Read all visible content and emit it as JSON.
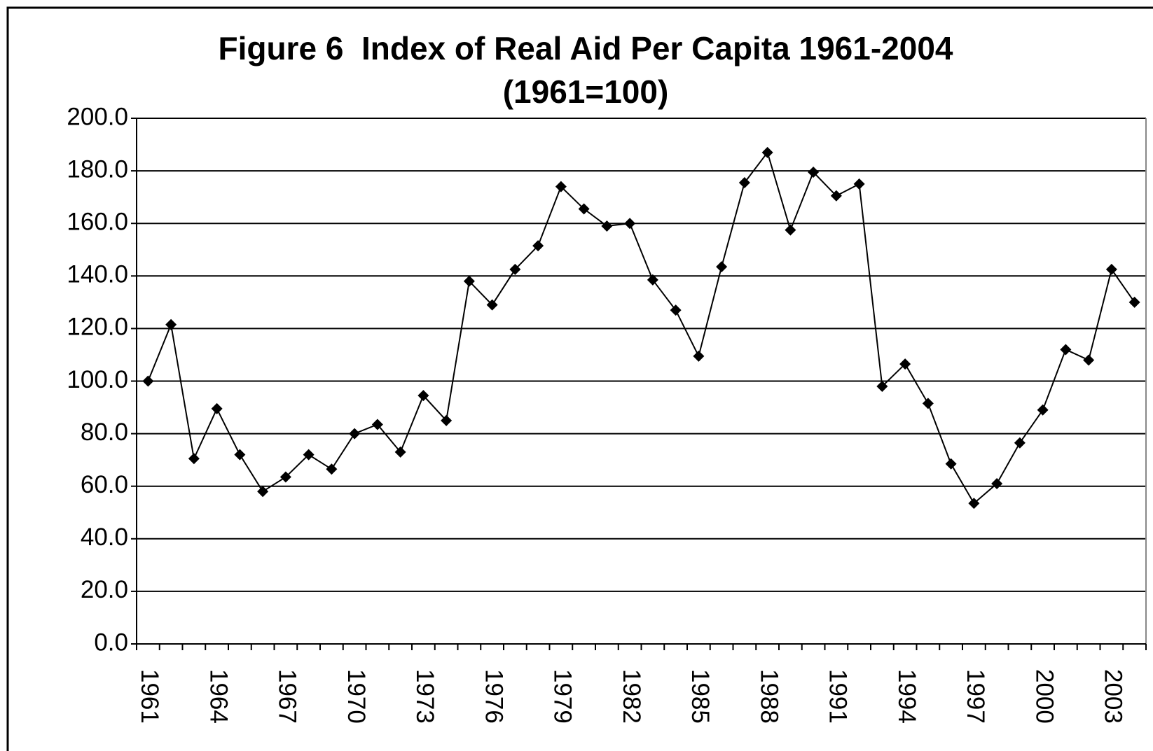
{
  "chart_data": {
    "type": "line",
    "title": "Figure 6  Index of Real Aid Per Capita 1961-2004",
    "subtitle": "(1961=100)",
    "categories": [
      "1961",
      null,
      null,
      "1964",
      null,
      null,
      "1967",
      null,
      null,
      "1970",
      null,
      null,
      "1973",
      null,
      null,
      "1976",
      null,
      null,
      "1979",
      null,
      null,
      "1982",
      null,
      null,
      "1985",
      null,
      null,
      "1988",
      null,
      null,
      "1991",
      null,
      null,
      "1994",
      null,
      null,
      "1997",
      null,
      null,
      "2000",
      null,
      null,
      "2003",
      null
    ],
    "values": [
      100,
      121.5,
      70.5,
      89.5,
      72,
      58,
      63.5,
      72,
      66.5,
      80,
      83.5,
      73,
      94.5,
      85,
      138,
      129,
      142.5,
      151.5,
      174,
      165.5,
      159,
      160,
      138.5,
      127,
      109.5,
      143.5,
      175.5,
      187,
      157.5,
      179.5,
      170.5,
      175,
      98,
      106.5,
      91.5,
      68.5,
      53.5,
      61,
      76.5,
      89,
      112,
      108,
      142.5,
      130
    ],
    "color": "#000000",
    "ylim": [
      0,
      200
    ],
    "yticks": [
      {
        "value": 0,
        "label": "0.0"
      },
      {
        "value": 20,
        "label": "20.0"
      },
      {
        "value": 40,
        "label": "40.0"
      },
      {
        "value": 60,
        "label": "60.0"
      },
      {
        "value": 80,
        "label": "80.0"
      },
      {
        "value": 100,
        "label": "100.0"
      },
      {
        "value": 120,
        "label": "120.0"
      },
      {
        "value": 140,
        "label": "140.0"
      },
      {
        "value": 160,
        "label": "160.0"
      },
      {
        "value": 180,
        "label": "180.0"
      },
      {
        "value": 200,
        "label": "200.0"
      }
    ],
    "grid": true
  }
}
